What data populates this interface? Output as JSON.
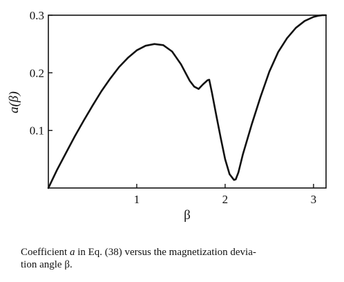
{
  "chart_data": {
    "type": "line",
    "title": "",
    "xlabel": "β",
    "ylabel": "a(β)",
    "xlim": [
      0,
      3.14159
    ],
    "ylim": [
      0,
      0.3
    ],
    "x_ticks": [
      1,
      2,
      3
    ],
    "x_tick_labels": [
      "1",
      "2",
      "3"
    ],
    "y_ticks": [
      0.1,
      0.2,
      0.3
    ],
    "y_tick_labels": [
      "0.1",
      "0.2",
      "0.3"
    ],
    "grid": false,
    "legend": "none",
    "series": [
      {
        "color": "#111111",
        "x": [
          0,
          0.1,
          0.2,
          0.3,
          0.4,
          0.5,
          0.6,
          0.7,
          0.8,
          0.9,
          1.0,
          1.1,
          1.2,
          1.3,
          1.4,
          1.5,
          1.6,
          1.65,
          1.7,
          1.75,
          1.8,
          1.82,
          1.85,
          1.9,
          1.95,
          2.0,
          2.05,
          2.1,
          2.12,
          2.15,
          2.2,
          2.3,
          2.4,
          2.5,
          2.6,
          2.7,
          2.8,
          2.9,
          3.0,
          3.05,
          3.1,
          3.14
        ],
        "y": [
          0,
          0.032,
          0.061,
          0.09,
          0.117,
          0.143,
          0.168,
          0.19,
          0.21,
          0.226,
          0.239,
          0.247,
          0.25,
          0.248,
          0.237,
          0.215,
          0.186,
          0.176,
          0.172,
          0.18,
          0.187,
          0.188,
          0.166,
          0.126,
          0.087,
          0.05,
          0.024,
          0.014,
          0.015,
          0.027,
          0.058,
          0.11,
          0.158,
          0.202,
          0.236,
          0.26,
          0.278,
          0.29,
          0.297,
          0.299,
          0.3,
          0.3
        ]
      }
    ]
  },
  "caption": {
    "prefix": "Coefficient ",
    "symbol": "a",
    "suffix": " in Eq. (38) versus the magnetization devia-",
    "line2": "tion angle β."
  }
}
